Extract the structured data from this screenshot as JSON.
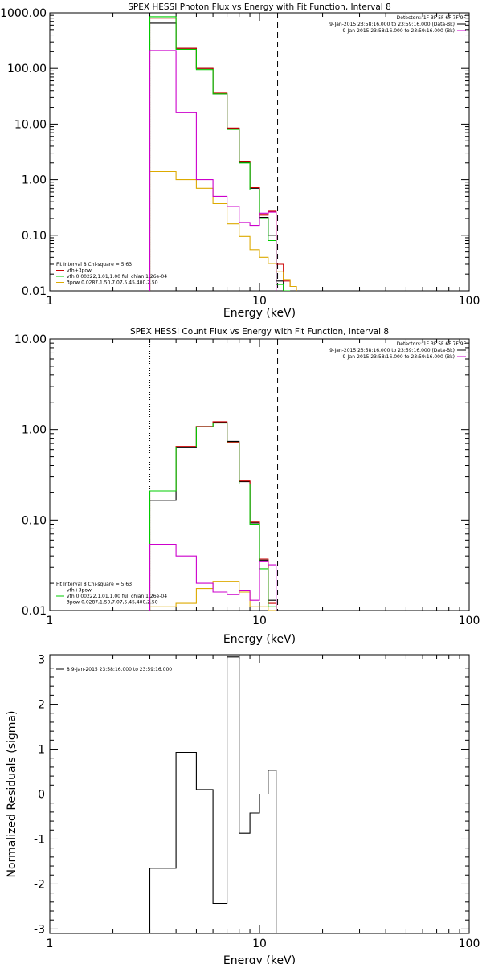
{
  "chart_data": [
    {
      "type": "line",
      "title": "SPEX HESSI Photon Flux vs Energy with Fit Function, Interval 8",
      "xlabel": "Energy (keV)",
      "ylabel": "",
      "xscale": "log",
      "yscale": "log",
      "xlim": [
        1,
        100
      ],
      "ylim": [
        0.01,
        1000
      ],
      "x_ticks": [
        "1",
        "10",
        "100"
      ],
      "y_ticks": [
        "0.01",
        "0.10",
        "1.00",
        "10.00",
        "100.00",
        "1000.00"
      ],
      "lower_limit_line": 3,
      "upper_limit_line": 12.2,
      "legend_right": [
        {
          "text": "Detectors: 1F 3F 5F 6F 7F 9F",
          "color": "#000000",
          "swatch": false
        },
        {
          "text": "9-Jan-2015 23:58:16.000 to 23:59:16.000 (Data-Bk)",
          "color": "#000000",
          "swatch": true
        },
        {
          "text": "9-Jan-2015 23:58:16.000 to 23:59:16.000 (Bk)",
          "color": "#cc00cc",
          "swatch": true
        }
      ],
      "legend_left": [
        {
          "text": "Fit Interval 8   Chi-square = 5.63",
          "color": "#000000",
          "swatch": false
        },
        {
          "text": "vth+3pow",
          "color": "#cc0000",
          "swatch": true
        },
        {
          "text": "vth 0.00222,1.01,1.00  full chian 1.26e-04",
          "color": "#00cc00",
          "swatch": true
        },
        {
          "text": "3pow 0.0287,1.50,7.07,5.45,400,2.50",
          "color": "#ddaa00",
          "swatch": true
        }
      ],
      "bin_edges": [
        3,
        4,
        5,
        6,
        7,
        8,
        9,
        10,
        11,
        12,
        13,
        14,
        15
      ],
      "series": [
        {
          "name": "9-Jan-2015 23:58:16.000 to 23:59:16.000 (Data-Bk)",
          "color": "#000000",
          "values": [
            650,
            230,
            100,
            35,
            8.4,
            2.05,
            0.7,
            0.21,
            0.1,
            0.015,
            0.01,
            null
          ]
        },
        {
          "name": "vth+3pow",
          "color": "#cc0000",
          "values": [
            800,
            230,
            100,
            36,
            8.5,
            2.1,
            0.72,
            0.23,
            0.27,
            0.03,
            0.015,
            0.012
          ]
        },
        {
          "name": "vth 0.00222,1.01,1.00  full chian 1.26e-04",
          "color": "#00cc00",
          "values": [
            850,
            220,
            95,
            35,
            8,
            2,
            0.65,
            0.2,
            0.08,
            0.013,
            0.01,
            null
          ]
        },
        {
          "name": "3pow 0.0287,1.50,7.07,5.45,400,2.50",
          "color": "#ddaa00",
          "values": [
            1.4,
            1.0,
            0.7,
            0.37,
            0.16,
            0.095,
            0.055,
            0.04,
            0.031,
            0.022,
            0.016,
            0.012
          ]
        },
        {
          "name": "9-Jan-2015 23:58:16.000 to 23:59:16.000 (Bk)",
          "color": "#cc00cc",
          "values": [
            210,
            16,
            1.0,
            0.5,
            0.33,
            0.17,
            0.15,
            0.25,
            0.26,
            null,
            null,
            null
          ]
        }
      ]
    },
    {
      "type": "line",
      "title": "SPEX HESSI Count Flux vs Energy with Fit Function, Interval 8",
      "xlabel": "Energy (keV)",
      "ylabel": "",
      "xscale": "log",
      "yscale": "log",
      "xlim": [
        1,
        100
      ],
      "ylim": [
        0.01,
        10
      ],
      "x_ticks": [
        "1",
        "10",
        "100"
      ],
      "y_ticks": [
        "0.01",
        "0.10",
        "1.00",
        "10.00"
      ],
      "lower_limit_line": 3,
      "upper_limit_line": 12.2,
      "legend_right": [
        {
          "text": "Detectors: 1F 3F 5F 6F 7F 9F",
          "color": "#000000",
          "swatch": false
        },
        {
          "text": "9-Jan-2015 23:58:16.000 to 23:59:16.000 (Data-Bk)",
          "color": "#000000",
          "swatch": true
        },
        {
          "text": "9-Jan-2015 23:58:16.000 to 23:59:16.000 (Bk)",
          "color": "#cc00cc",
          "swatch": true
        }
      ],
      "legend_left": [
        {
          "text": "Fit Interval 8   Chi-square = 5.63",
          "color": "#000000",
          "swatch": false
        },
        {
          "text": "vth+3pow",
          "color": "#cc0000",
          "swatch": true
        },
        {
          "text": "vth 0.00222,1.01,1.00  full chian 1.26e-04",
          "color": "#00cc00",
          "swatch": true
        },
        {
          "text": "3pow 0.0287,1.50,7.07,5.45,400,2.50",
          "color": "#ddaa00",
          "swatch": true
        }
      ],
      "bin_edges": [
        3,
        4,
        5,
        6,
        7,
        8,
        9,
        10,
        11,
        12
      ],
      "series": [
        {
          "name": "9-Jan-2015 23:58:16.000 to 23:59:16.000 (Data-Bk)",
          "color": "#000000",
          "values": [
            0.165,
            0.63,
            1.08,
            1.2,
            0.74,
            0.265,
            0.093,
            0.036,
            0.013
          ]
        },
        {
          "name": "vth+3pow",
          "color": "#cc0000",
          "values": [
            0.21,
            0.65,
            1.08,
            1.22,
            0.72,
            0.27,
            0.095,
            0.037,
            0.012
          ]
        },
        {
          "name": "vth 0.00222,1.01,1.00  full chian 1.26e-04",
          "color": "#00cc00",
          "values": [
            0.21,
            0.64,
            1.07,
            1.18,
            0.71,
            0.25,
            0.09,
            0.029,
            0.011
          ]
        },
        {
          "name": "3pow 0.0287,1.50,7.07,5.45,400,2.50",
          "color": "#ddaa00",
          "values": [
            0.011,
            0.012,
            0.0175,
            0.021,
            0.021,
            0.016,
            0.011,
            0.011,
            0.01
          ]
        },
        {
          "name": "9-Jan-2015 23:58:16.000 to 23:59:16.000 (Bk)",
          "color": "#cc00cc",
          "values": [
            0.054,
            0.04,
            0.02,
            0.016,
            0.015,
            0.0165,
            0.013,
            0.035,
            0.032
          ]
        }
      ]
    },
    {
      "type": "line",
      "title": "",
      "xlabel": "Energy (keV)",
      "ylabel": "Normalized Residuals (sigma)",
      "xscale": "log",
      "yscale": "linear",
      "xlim": [
        1,
        100
      ],
      "ylim": [
        -3.1,
        3.1
      ],
      "x_ticks": [
        "1",
        "10",
        "100"
      ],
      "y_ticks": [
        "-3",
        "-2",
        "-1",
        "0",
        "1",
        "2",
        "3"
      ],
      "legend_left": [
        {
          "text": "8  9-Jan-2015 23:58:16.000 to 23:59:16.000",
          "color": "#000000",
          "swatch": true
        }
      ],
      "bin_edges": [
        3,
        4,
        5,
        6,
        7,
        8,
        9,
        10,
        11,
        12
      ],
      "series": [
        {
          "name": "8  9-Jan-2015 23:58:16.000 to 23:59:16.000",
          "color": "#000000",
          "values": [
            -1.65,
            0.93,
            0.1,
            -2.43,
            3.05,
            -0.87,
            -0.42,
            0.0,
            0.53
          ]
        }
      ]
    }
  ]
}
